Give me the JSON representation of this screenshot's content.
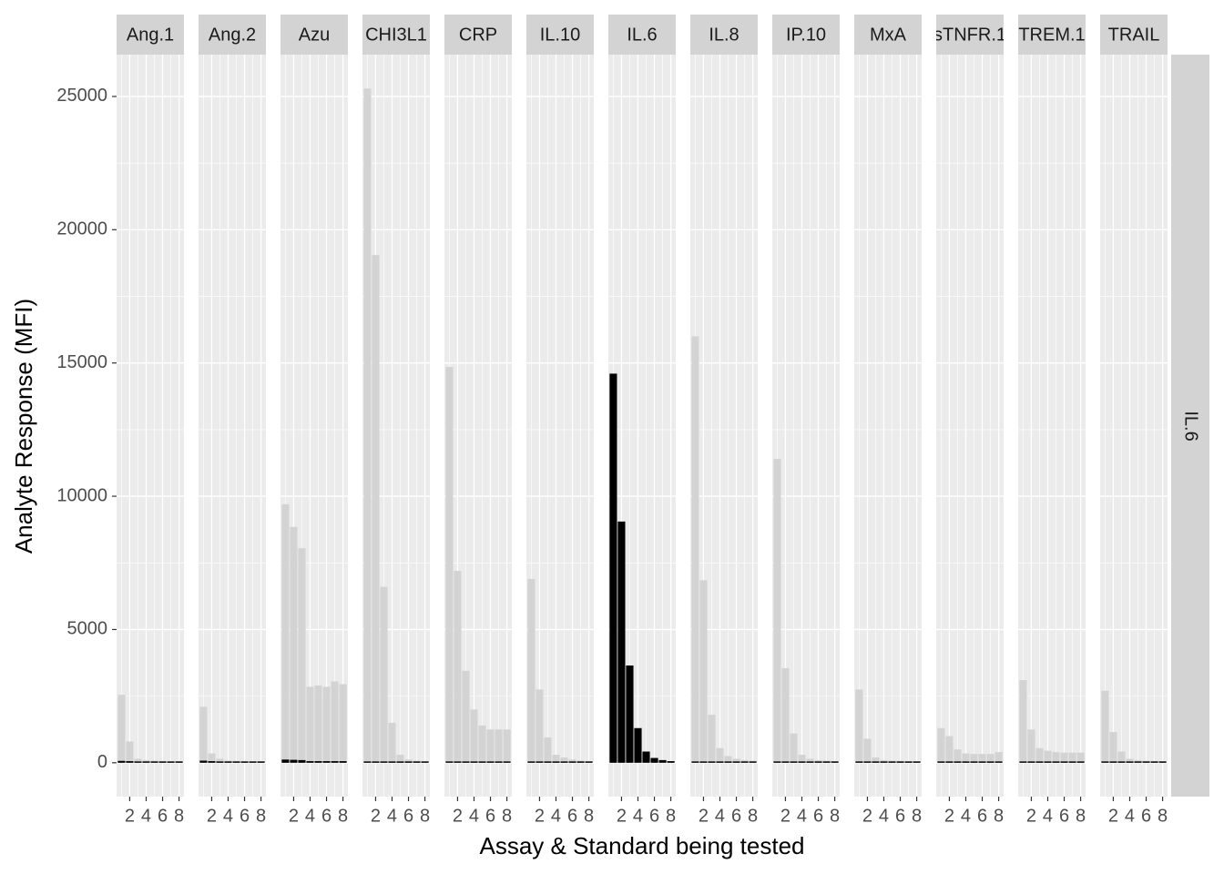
{
  "chart_data": {
    "type": "bar",
    "y_label": "Analyte Response (MFI)",
    "x_label": "Assay & Standard being tested",
    "row_strip": "IL.6",
    "x": [
      1,
      2,
      3,
      4,
      5,
      6,
      7,
      8
    ],
    "xlim": [
      0.4,
      8.6
    ],
    "xticks": [
      2,
      4,
      6,
      8
    ],
    "ylim": [
      -1270,
      26570
    ],
    "yticks": [
      0,
      5000,
      10000,
      15000,
      20000,
      25000
    ],
    "grid": true,
    "panels": [
      {
        "title": "Ang.1",
        "series": [
          {
            "color": "#d3d3d3",
            "values": [
              2550,
              800,
              150,
              100,
              80,
              70,
              60,
              60
            ]
          },
          {
            "color": "#000000",
            "values": [
              70,
              60,
              50,
              50,
              50,
              50,
              50,
              50
            ]
          }
        ]
      },
      {
        "title": "Ang.2",
        "series": [
          {
            "color": "#d3d3d3",
            "values": [
              2100,
              350,
              150,
              80,
              70,
              60,
              60,
              60
            ]
          },
          {
            "color": "#000000",
            "values": [
              80,
              60,
              50,
              50,
              50,
              50,
              50,
              50
            ]
          }
        ]
      },
      {
        "title": "Azu",
        "series": [
          {
            "color": "#d3d3d3",
            "values": [
              9700,
              8850,
              8050,
              2850,
              2900,
              2850,
              3050,
              2950
            ]
          },
          {
            "color": "#000000",
            "values": [
              120,
              110,
              100,
              60,
              60,
              60,
              60,
              60
            ]
          }
        ]
      },
      {
        "title": "CHI3L1",
        "series": [
          {
            "color": "#d3d3d3",
            "values": [
              25300,
              19050,
              6600,
              1500,
              300,
              120,
              80,
              60
            ]
          },
          {
            "color": "#000000",
            "values": [
              50,
              50,
              50,
              50,
              50,
              50,
              50,
              50
            ]
          }
        ]
      },
      {
        "title": "CRP",
        "series": [
          {
            "color": "#d3d3d3",
            "values": [
              14850,
              7200,
              3450,
              2000,
              1400,
              1250,
              1250,
              1250
            ]
          },
          {
            "color": "#000000",
            "values": [
              50,
              50,
              50,
              50,
              50,
              50,
              50,
              50
            ]
          }
        ]
      },
      {
        "title": "IL.10",
        "series": [
          {
            "color": "#d3d3d3",
            "values": [
              6900,
              2750,
              950,
              300,
              200,
              120,
              80,
              60
            ]
          },
          {
            "color": "#000000",
            "values": [
              50,
              50,
              50,
              50,
              50,
              50,
              50,
              50
            ]
          }
        ]
      },
      {
        "title": "IL.6",
        "series": [
          {
            "color": "#d3d3d3",
            "values": [
              14600,
              9050,
              3650,
              1300,
              420,
              180,
              100,
              60
            ]
          },
          {
            "color": "#000000",
            "values": [
              14600,
              9050,
              3650,
              1300,
              420,
              180,
              100,
              60
            ]
          }
        ]
      },
      {
        "title": "IL.8",
        "series": [
          {
            "color": "#d3d3d3",
            "values": [
              16000,
              6850,
              1800,
              550,
              250,
              150,
              100,
              80
            ]
          },
          {
            "color": "#000000",
            "values": [
              50,
              50,
              50,
              50,
              50,
              50,
              50,
              50
            ]
          }
        ]
      },
      {
        "title": "IP.10",
        "series": [
          {
            "color": "#d3d3d3",
            "values": [
              11400,
              3550,
              1100,
              300,
              150,
              100,
              80,
              60
            ]
          },
          {
            "color": "#000000",
            "values": [
              50,
              50,
              50,
              50,
              50,
              50,
              50,
              50
            ]
          }
        ]
      },
      {
        "title": "MxA",
        "series": [
          {
            "color": "#d3d3d3",
            "values": [
              2750,
              900,
              200,
              100,
              80,
              70,
              60,
              60
            ]
          },
          {
            "color": "#000000",
            "values": [
              50,
              50,
              50,
              50,
              50,
              50,
              50,
              50
            ]
          }
        ]
      },
      {
        "title": "sTNFR.1",
        "series": [
          {
            "color": "#d3d3d3",
            "values": [
              1300,
              1000,
              500,
              350,
              330,
              330,
              330,
              400
            ]
          },
          {
            "color": "#000000",
            "values": [
              50,
              50,
              50,
              50,
              50,
              50,
              50,
              50
            ]
          }
        ]
      },
      {
        "title": "TREM.1",
        "series": [
          {
            "color": "#d3d3d3",
            "values": [
              3100,
              1250,
              550,
              450,
              400,
              380,
              380,
              380
            ]
          },
          {
            "color": "#000000",
            "values": [
              50,
              50,
              50,
              50,
              50,
              50,
              50,
              50
            ]
          }
        ]
      },
      {
        "title": "TRAIL",
        "series": [
          {
            "color": "#d3d3d3",
            "values": [
              2700,
              1150,
              420,
              150,
              100,
              80,
              70,
              60
            ]
          },
          {
            "color": "#000000",
            "values": [
              50,
              50,
              50,
              50,
              50,
              50,
              50,
              50
            ]
          }
        ]
      }
    ]
  }
}
